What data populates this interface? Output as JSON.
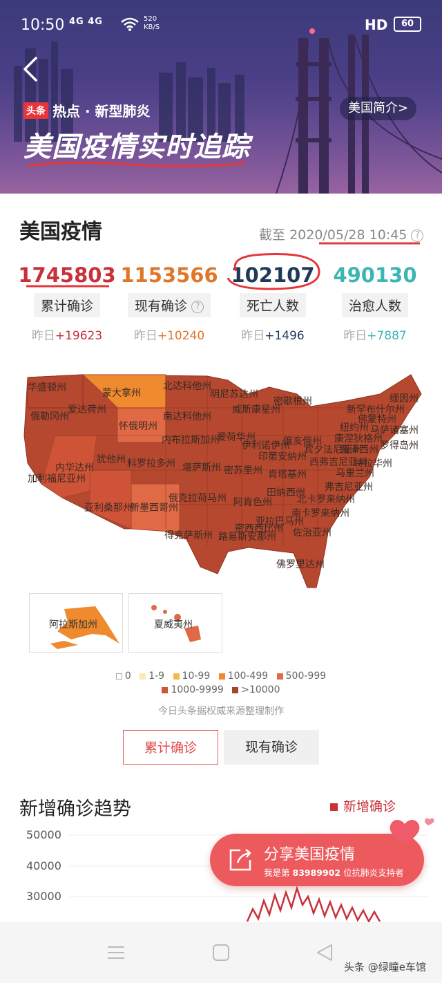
{
  "status_bar": {
    "time": "10:50",
    "network": "4G 4G",
    "speed": "520 KB/S",
    "hd": "HD",
    "battery": "60"
  },
  "hero": {
    "tag_logo": "头条",
    "tag_text": "热点 · 新型肺炎",
    "title": "美国疫情实时追踪",
    "intro_button": "美国简介>"
  },
  "summary": {
    "title": "美国疫情",
    "as_of_prefix": "截至",
    "as_of": "2020/05/28 10:45",
    "help": "?",
    "stats": [
      {
        "value": "1745803",
        "label": "累计确诊",
        "delta_prefix": "昨日",
        "delta": "+19623",
        "color": "#c8303a"
      },
      {
        "value": "1153566",
        "label": "现有确诊",
        "delta_prefix": "昨日",
        "delta": "+10240",
        "color": "#e0762a"
      },
      {
        "value": "102107",
        "label": "死亡人数",
        "delta_prefix": "昨日",
        "delta": "+1496",
        "color": "#1f3a57"
      },
      {
        "value": "490130",
        "label": "治愈人数",
        "delta_prefix": "昨日",
        "delta": "+7887",
        "color": "#3cb5b3"
      }
    ]
  },
  "map": {
    "states": [
      "华盛顿州",
      "俄勒冈州",
      "爱达荷州",
      "蒙大拿州",
      "北达科他州",
      "明尼苏达州",
      "密歇根州",
      "缅因州",
      "新罕布什尔州",
      "佛蒙特州",
      "纽约州",
      "马萨诸塞州",
      "罗得岛州",
      "康涅狄格州",
      "南达科他州",
      "怀俄明州",
      "威斯康星州",
      "爱荷华州",
      "内布拉斯加州",
      "伊利诺伊州",
      "印第安纳州",
      "俄亥俄州",
      "宾夕法尼亚州",
      "新泽西州",
      "特拉华州",
      "马里兰州",
      "内华达州",
      "犹他州",
      "科罗拉多州",
      "堪萨斯州",
      "密苏里州",
      "肯塔基州",
      "西弗吉尼亚州",
      "弗吉尼亚州",
      "加利福尼亚州",
      "亚利桑那州",
      "新墨西哥州",
      "俄克拉荷马州",
      "阿肯色州",
      "田纳西州",
      "北卡罗来纳州",
      "南卡罗来纳州",
      "密西西比州",
      "亚拉巴马州",
      "佐治亚州",
      "得克萨斯州",
      "路易斯安那州",
      "佛罗里达州"
    ],
    "insets": [
      "阿拉斯加州",
      "夏威夷州"
    ],
    "legend": [
      {
        "label": "0",
        "color": "#ffffff"
      },
      {
        "label": "1-9",
        "color": "#fce9b0"
      },
      {
        "label": "10-99",
        "color": "#f6b84a"
      },
      {
        "label": "100-499",
        "color": "#ef8a2e"
      },
      {
        "label": "500-999",
        "color": "#e06a45"
      },
      {
        "label": "1000-9999",
        "color": "#cf5336"
      },
      {
        "label": ">10000",
        "color": "#a8442e"
      }
    ],
    "source": "今日头条据权威来源整理制作"
  },
  "toggles": {
    "cumulative": "累计确诊",
    "current": "现有确诊"
  },
  "trend": {
    "title": "新增确诊趋势",
    "legend": "新增确诊",
    "yticks": [
      "50000",
      "40000",
      "30000"
    ]
  },
  "share": {
    "title": "分享美国疫情",
    "sub_prefix": "我是第",
    "sub_number": "83989902",
    "sub_suffix": "位抗肺炎支持者"
  },
  "watermark": "头条 @绿瞳e车馆"
}
